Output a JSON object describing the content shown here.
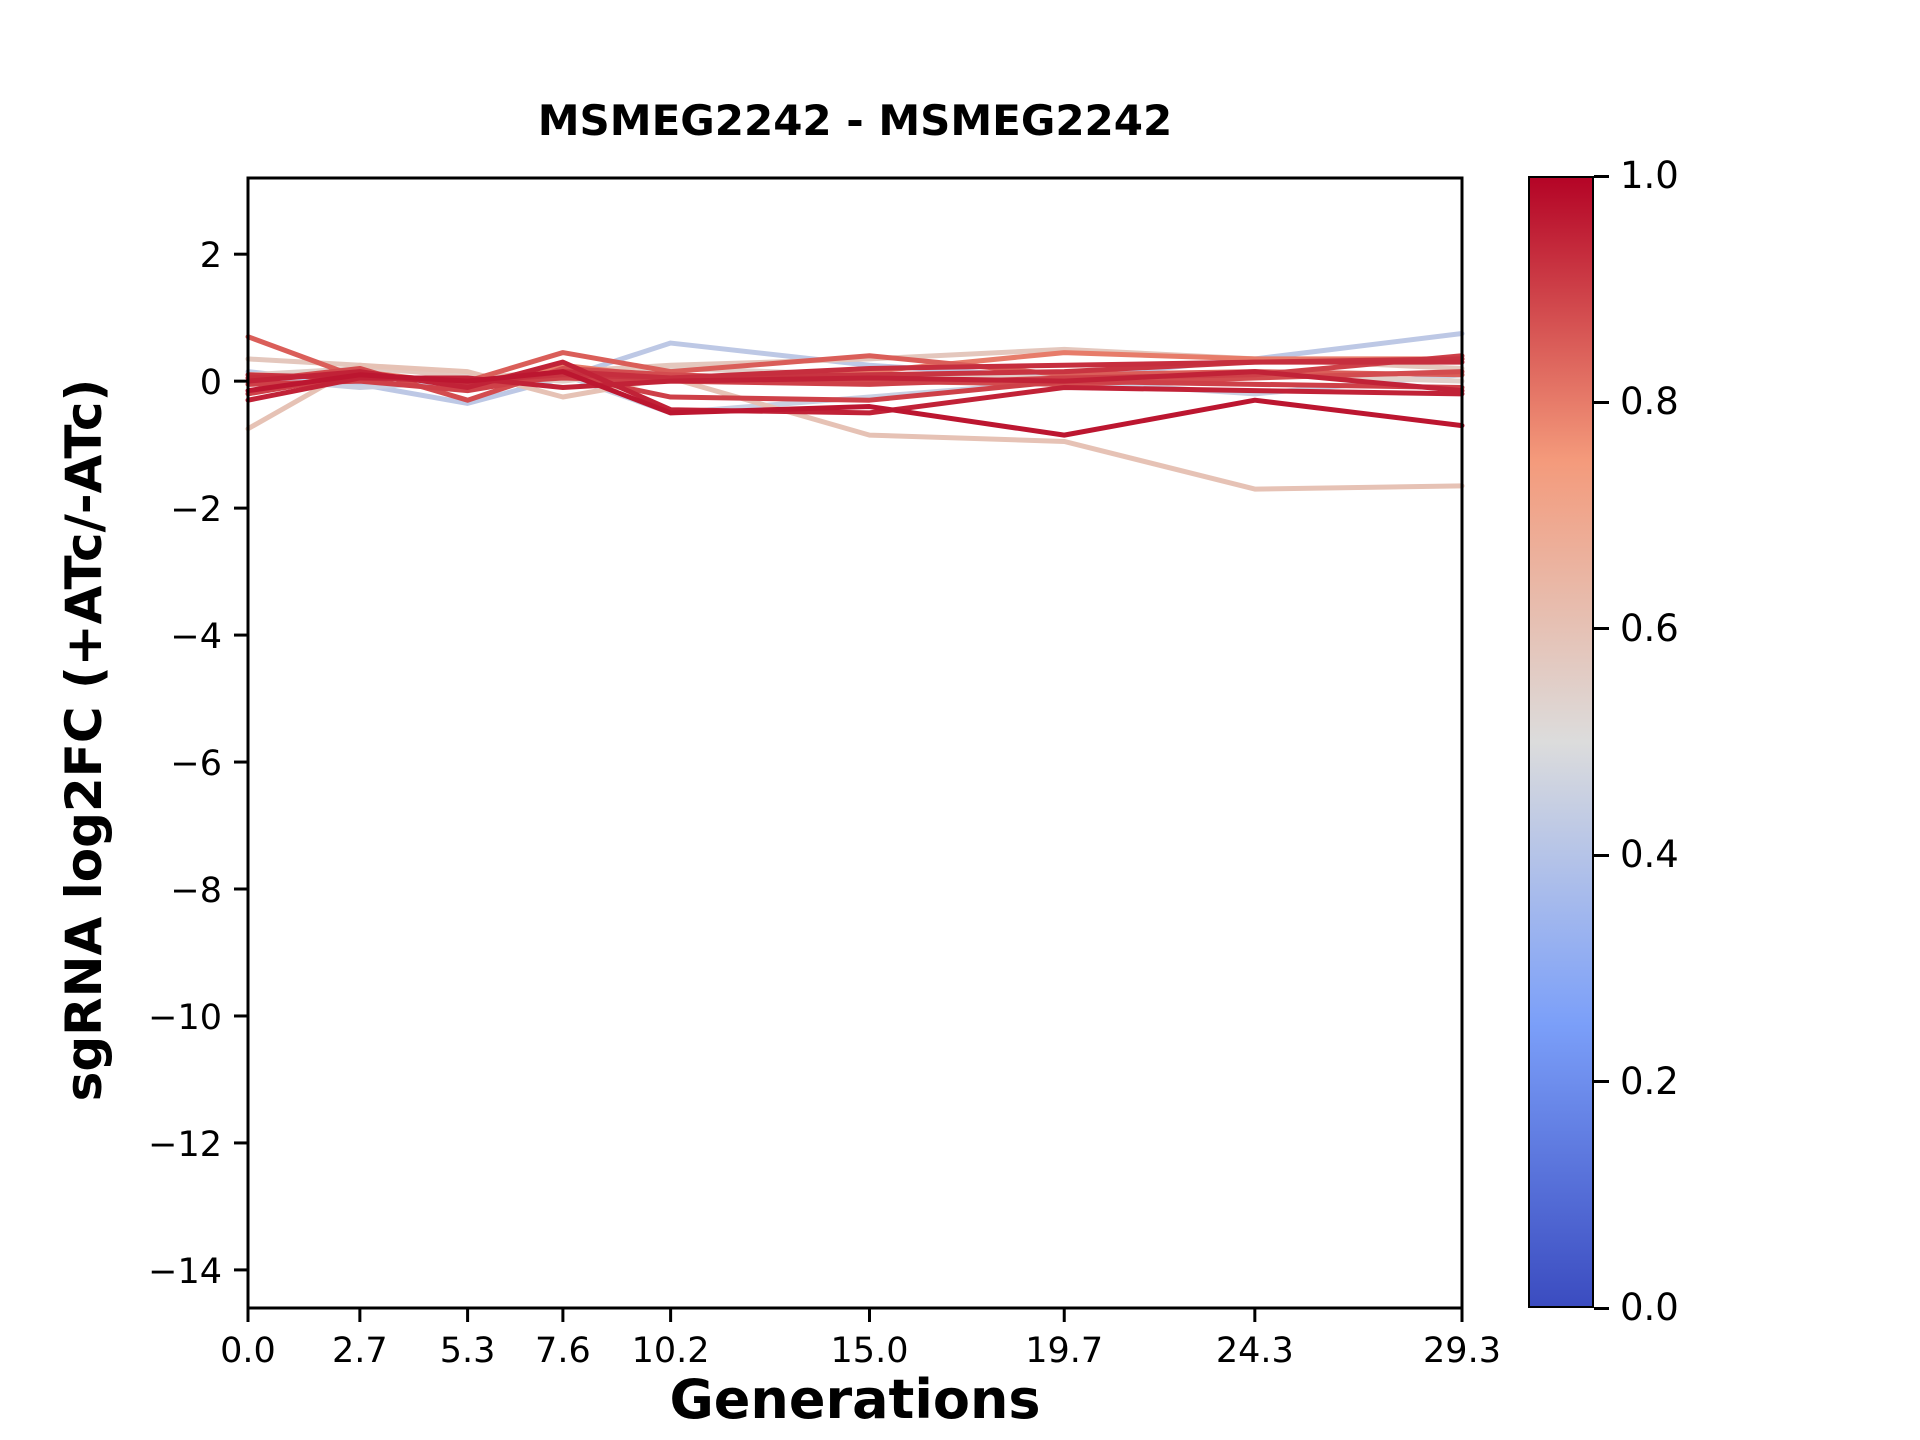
{
  "title": "MSMEG2242 - MSMEG2242",
  "xlabel": "Generations",
  "ylabel": "sgRNA log2FC (+ATc/-ATc)",
  "chart_data": {
    "type": "line",
    "title": "MSMEG2242 - MSMEG2242",
    "xlabel": "Generations",
    "ylabel": "sgRNA log2FC (+ATc/-ATc)",
    "x": [
      0.0,
      2.7,
      5.3,
      7.6,
      10.2,
      15.0,
      19.7,
      24.3,
      29.3
    ],
    "xticks": [
      "0.0",
      "2.7",
      "5.3",
      "7.6",
      "10.2",
      "15.0",
      "19.7",
      "24.3",
      "29.3"
    ],
    "yticks": [
      2,
      0,
      -2,
      -4,
      -6,
      -8,
      -10,
      -12,
      -14
    ],
    "xlim": [
      0,
      29.3
    ],
    "ylim": [
      -14.6,
      3.2
    ],
    "grid": false,
    "legend": "none",
    "colormap": "coolwarm",
    "colormap_anchors": [
      {
        "t": 0.0,
        "color": "#3b4cc0"
      },
      {
        "t": 0.25,
        "color": "#7b9ff9"
      },
      {
        "t": 0.5,
        "color": "#dcdcdc"
      },
      {
        "t": 0.75,
        "color": "#f49a7b"
      },
      {
        "t": 1.0,
        "color": "#b40426"
      }
    ],
    "colorbar": {
      "min": 0.0,
      "max": 1.0,
      "ticks": [
        "0.0",
        "0.2",
        "0.4",
        "0.6",
        "0.8",
        "1.0"
      ]
    },
    "series": [
      {
        "c": 0.42,
        "values": [
          0.15,
          -0.05,
          -0.35,
          0.05,
          0.6,
          0.25,
          0.05,
          0.35,
          0.75
        ]
      },
      {
        "c": 0.45,
        "values": [
          0.05,
          -0.1,
          0.0,
          0.1,
          -0.5,
          -0.25,
          0.0,
          -0.2,
          0.1
        ]
      },
      {
        "c": 0.55,
        "values": [
          0.1,
          0.2,
          0.1,
          0.0,
          0.2,
          0.1,
          0.05,
          0.1,
          0.0
        ]
      },
      {
        "c": 0.58,
        "values": [
          0.35,
          0.25,
          0.05,
          0.15,
          0.25,
          0.35,
          0.5,
          0.35,
          0.2
        ]
      },
      {
        "c": 0.6,
        "values": [
          -0.75,
          0.25,
          0.15,
          -0.25,
          0.05,
          -0.85,
          -0.95,
          -1.7,
          -1.65
        ]
      },
      {
        "c": 0.8,
        "values": [
          -0.2,
          0.15,
          -0.05,
          0.25,
          0.05,
          0.15,
          0.45,
          0.35,
          0.35
        ]
      },
      {
        "c": 0.85,
        "values": [
          0.7,
          0.05,
          0.0,
          0.45,
          0.15,
          0.4,
          0.1,
          0.15,
          0.1
        ]
      },
      {
        "c": 0.88,
        "values": [
          0.0,
          0.2,
          -0.3,
          0.2,
          0.1,
          0.0,
          -0.05,
          0.05,
          0.15
        ]
      },
      {
        "c": 0.9,
        "values": [
          -0.05,
          0.0,
          -0.15,
          0.1,
          -0.25,
          -0.3,
          0.0,
          -0.05,
          -0.1
        ]
      },
      {
        "c": 0.9,
        "values": [
          -0.2,
          0.1,
          -0.05,
          0.05,
          0.0,
          -0.05,
          0.05,
          0.1,
          0.4
        ]
      },
      {
        "c": 0.92,
        "values": [
          0.1,
          0.05,
          0.0,
          0.1,
          0.05,
          0.1,
          0.15,
          0.3,
          0.35
        ]
      },
      {
        "c": 0.93,
        "values": [
          0.05,
          0.1,
          -0.05,
          0.15,
          0.05,
          0.2,
          0.25,
          0.3,
          0.3
        ]
      },
      {
        "c": 0.95,
        "values": [
          0.0,
          0.15,
          -0.1,
          0.3,
          -0.45,
          -0.5,
          -0.1,
          -0.15,
          -0.2
        ]
      },
      {
        "c": 0.95,
        "values": [
          -0.3,
          0.05,
          0.05,
          -0.1,
          0.0,
          0.05,
          0.0,
          0.15,
          -0.15
        ]
      },
      {
        "c": 0.97,
        "values": [
          -0.15,
          0.1,
          0.0,
          0.15,
          -0.5,
          -0.4,
          -0.85,
          -0.3,
          -0.7
        ]
      }
    ]
  }
}
